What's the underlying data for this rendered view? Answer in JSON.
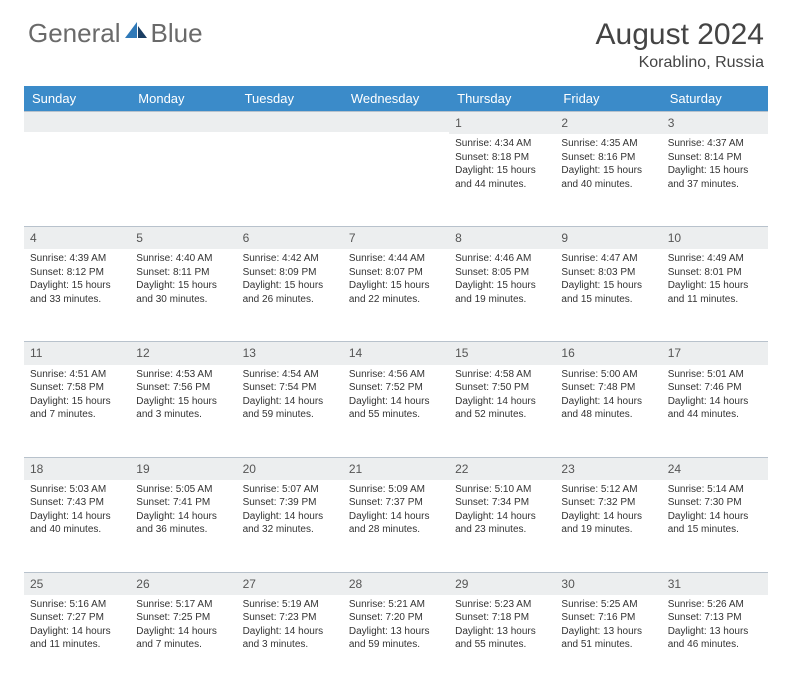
{
  "brand": {
    "part1": "General",
    "part2": "Blue"
  },
  "brand_colors": {
    "text": "#6a6a6a",
    "accent": "#2f79b8",
    "dark": "#1a3e63"
  },
  "title": "August 2024",
  "subtitle": "Korablino, Russia",
  "header_bg": "#3b8bc9",
  "header_fg": "#ffffff",
  "daynum_bg": "#eceeef",
  "weekdays": [
    "Sunday",
    "Monday",
    "Tuesday",
    "Wednesday",
    "Thursday",
    "Friday",
    "Saturday"
  ],
  "weeks": [
    [
      null,
      null,
      null,
      null,
      {
        "n": "1",
        "sr": "Sunrise: 4:34 AM",
        "ss": "Sunset: 8:18 PM",
        "dl": "Daylight: 15 hours and 44 minutes."
      },
      {
        "n": "2",
        "sr": "Sunrise: 4:35 AM",
        "ss": "Sunset: 8:16 PM",
        "dl": "Daylight: 15 hours and 40 minutes."
      },
      {
        "n": "3",
        "sr": "Sunrise: 4:37 AM",
        "ss": "Sunset: 8:14 PM",
        "dl": "Daylight: 15 hours and 37 minutes."
      }
    ],
    [
      {
        "n": "4",
        "sr": "Sunrise: 4:39 AM",
        "ss": "Sunset: 8:12 PM",
        "dl": "Daylight: 15 hours and 33 minutes."
      },
      {
        "n": "5",
        "sr": "Sunrise: 4:40 AM",
        "ss": "Sunset: 8:11 PM",
        "dl": "Daylight: 15 hours and 30 minutes."
      },
      {
        "n": "6",
        "sr": "Sunrise: 4:42 AM",
        "ss": "Sunset: 8:09 PM",
        "dl": "Daylight: 15 hours and 26 minutes."
      },
      {
        "n": "7",
        "sr": "Sunrise: 4:44 AM",
        "ss": "Sunset: 8:07 PM",
        "dl": "Daylight: 15 hours and 22 minutes."
      },
      {
        "n": "8",
        "sr": "Sunrise: 4:46 AM",
        "ss": "Sunset: 8:05 PM",
        "dl": "Daylight: 15 hours and 19 minutes."
      },
      {
        "n": "9",
        "sr": "Sunrise: 4:47 AM",
        "ss": "Sunset: 8:03 PM",
        "dl": "Daylight: 15 hours and 15 minutes."
      },
      {
        "n": "10",
        "sr": "Sunrise: 4:49 AM",
        "ss": "Sunset: 8:01 PM",
        "dl": "Daylight: 15 hours and 11 minutes."
      }
    ],
    [
      {
        "n": "11",
        "sr": "Sunrise: 4:51 AM",
        "ss": "Sunset: 7:58 PM",
        "dl": "Daylight: 15 hours and 7 minutes."
      },
      {
        "n": "12",
        "sr": "Sunrise: 4:53 AM",
        "ss": "Sunset: 7:56 PM",
        "dl": "Daylight: 15 hours and 3 minutes."
      },
      {
        "n": "13",
        "sr": "Sunrise: 4:54 AM",
        "ss": "Sunset: 7:54 PM",
        "dl": "Daylight: 14 hours and 59 minutes."
      },
      {
        "n": "14",
        "sr": "Sunrise: 4:56 AM",
        "ss": "Sunset: 7:52 PM",
        "dl": "Daylight: 14 hours and 55 minutes."
      },
      {
        "n": "15",
        "sr": "Sunrise: 4:58 AM",
        "ss": "Sunset: 7:50 PM",
        "dl": "Daylight: 14 hours and 52 minutes."
      },
      {
        "n": "16",
        "sr": "Sunrise: 5:00 AM",
        "ss": "Sunset: 7:48 PM",
        "dl": "Daylight: 14 hours and 48 minutes."
      },
      {
        "n": "17",
        "sr": "Sunrise: 5:01 AM",
        "ss": "Sunset: 7:46 PM",
        "dl": "Daylight: 14 hours and 44 minutes."
      }
    ],
    [
      {
        "n": "18",
        "sr": "Sunrise: 5:03 AM",
        "ss": "Sunset: 7:43 PM",
        "dl": "Daylight: 14 hours and 40 minutes."
      },
      {
        "n": "19",
        "sr": "Sunrise: 5:05 AM",
        "ss": "Sunset: 7:41 PM",
        "dl": "Daylight: 14 hours and 36 minutes."
      },
      {
        "n": "20",
        "sr": "Sunrise: 5:07 AM",
        "ss": "Sunset: 7:39 PM",
        "dl": "Daylight: 14 hours and 32 minutes."
      },
      {
        "n": "21",
        "sr": "Sunrise: 5:09 AM",
        "ss": "Sunset: 7:37 PM",
        "dl": "Daylight: 14 hours and 28 minutes."
      },
      {
        "n": "22",
        "sr": "Sunrise: 5:10 AM",
        "ss": "Sunset: 7:34 PM",
        "dl": "Daylight: 14 hours and 23 minutes."
      },
      {
        "n": "23",
        "sr": "Sunrise: 5:12 AM",
        "ss": "Sunset: 7:32 PM",
        "dl": "Daylight: 14 hours and 19 minutes."
      },
      {
        "n": "24",
        "sr": "Sunrise: 5:14 AM",
        "ss": "Sunset: 7:30 PM",
        "dl": "Daylight: 14 hours and 15 minutes."
      }
    ],
    [
      {
        "n": "25",
        "sr": "Sunrise: 5:16 AM",
        "ss": "Sunset: 7:27 PM",
        "dl": "Daylight: 14 hours and 11 minutes."
      },
      {
        "n": "26",
        "sr": "Sunrise: 5:17 AM",
        "ss": "Sunset: 7:25 PM",
        "dl": "Daylight: 14 hours and 7 minutes."
      },
      {
        "n": "27",
        "sr": "Sunrise: 5:19 AM",
        "ss": "Sunset: 7:23 PM",
        "dl": "Daylight: 14 hours and 3 minutes."
      },
      {
        "n": "28",
        "sr": "Sunrise: 5:21 AM",
        "ss": "Sunset: 7:20 PM",
        "dl": "Daylight: 13 hours and 59 minutes."
      },
      {
        "n": "29",
        "sr": "Sunrise: 5:23 AM",
        "ss": "Sunset: 7:18 PM",
        "dl": "Daylight: 13 hours and 55 minutes."
      },
      {
        "n": "30",
        "sr": "Sunrise: 5:25 AM",
        "ss": "Sunset: 7:16 PM",
        "dl": "Daylight: 13 hours and 51 minutes."
      },
      {
        "n": "31",
        "sr": "Sunrise: 5:26 AM",
        "ss": "Sunset: 7:13 PM",
        "dl": "Daylight: 13 hours and 46 minutes."
      }
    ]
  ]
}
